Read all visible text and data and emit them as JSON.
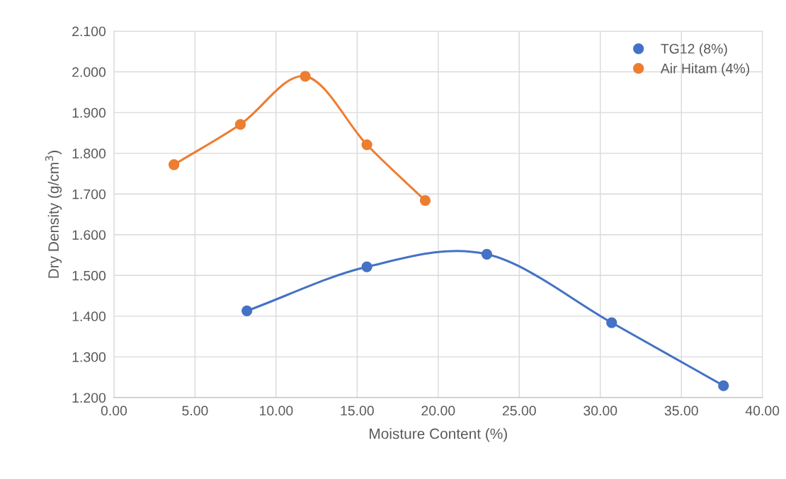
{
  "chart_data": {
    "type": "line",
    "xlabel": "Moisture Content (%)",
    "ylabel": "Dry Density (g/cm$^{3}$)",
    "series": [
      {
        "name": "TG12 (8%)",
        "color": "#4472c4",
        "x": [
          8.2,
          15.6,
          23.0,
          30.7,
          37.6
        ],
        "values": [
          1.413,
          1.521,
          1.552,
          1.384,
          1.229
        ]
      },
      {
        "name": "Air Hitam (4%)",
        "color": "#ed7d31",
        "x": [
          3.7,
          7.8,
          11.8,
          15.6,
          19.2
        ],
        "values": [
          1.772,
          1.871,
          1.989,
          1.821,
          1.684
        ]
      }
    ],
    "xlim": [
      0,
      40
    ],
    "ylim": [
      1.2,
      2.1
    ],
    "xticks": [
      {
        "value": 0,
        "label": "0.00"
      },
      {
        "value": 5,
        "label": "5.00"
      },
      {
        "value": 10,
        "label": "10.00"
      },
      {
        "value": 15,
        "label": "15.00"
      },
      {
        "value": 20,
        "label": "20.00"
      },
      {
        "value": 25,
        "label": "25.00"
      },
      {
        "value": 30,
        "label": "30.00"
      },
      {
        "value": 35,
        "label": "35.00"
      },
      {
        "value": 40,
        "label": "40.00"
      }
    ],
    "yticks": [
      {
        "value": 1.2,
        "label": "1.200"
      },
      {
        "value": 1.3,
        "label": "1.300"
      },
      {
        "value": 1.4,
        "label": "1.400"
      },
      {
        "value": 1.5,
        "label": "1.500"
      },
      {
        "value": 1.6,
        "label": "1.600"
      },
      {
        "value": 1.7,
        "label": "1.700"
      },
      {
        "value": 1.8,
        "label": "1.800"
      },
      {
        "value": 1.9,
        "label": "1.900"
      },
      {
        "value": 2.0,
        "label": "2.000"
      },
      {
        "value": 2.1,
        "label": "2.100"
      }
    ],
    "grid": true,
    "legend": "top right",
    "marker": "circle",
    "line_style": "solid"
  }
}
